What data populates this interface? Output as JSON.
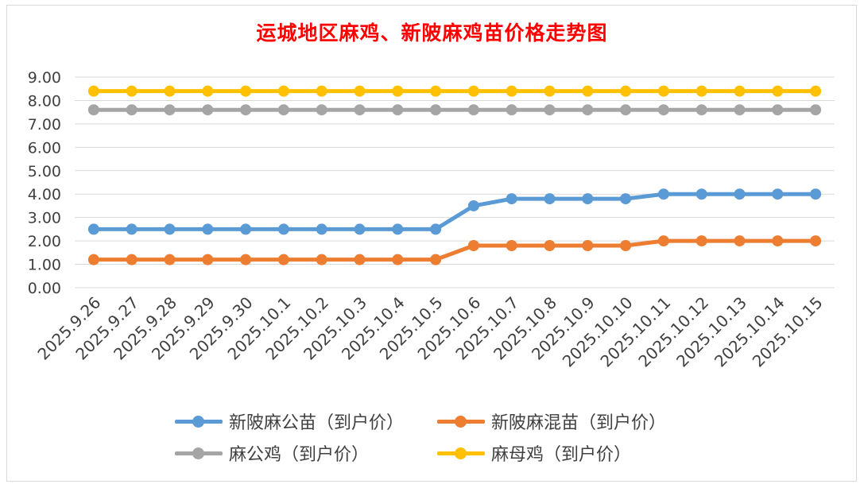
{
  "chart_data": {
    "type": "line",
    "title": "运城地区麻鸡、新陂麻鸡苗价格走势图",
    "categories": [
      "2025.9.26",
      "2025.9.27",
      "2025.9.28",
      "2025.9.29",
      "2025.9.30",
      "2025.10.1",
      "2025.10.2",
      "2025.10.3",
      "2025.10.4",
      "2025.10.5",
      "2025.10.6",
      "2025.10.7",
      "2025.10.8",
      "2025.10.9",
      "2025.10.10",
      "2025.10.11",
      "2025.10.12",
      "2025.10.13",
      "2025.10.14",
      "2025.10.15"
    ],
    "ylim": [
      0,
      9
    ],
    "yticks": [
      "0.00",
      "1.00",
      "2.00",
      "3.00",
      "4.00",
      "5.00",
      "6.00",
      "7.00",
      "8.00",
      "9.00"
    ],
    "grid": true,
    "legend_position": "bottom",
    "series": [
      {
        "name": "新陂麻公苗（到户价）",
        "color": "#5b9bd5",
        "values": [
          2.5,
          2.5,
          2.5,
          2.5,
          2.5,
          2.5,
          2.5,
          2.5,
          2.5,
          2.5,
          3.5,
          3.8,
          3.8,
          3.8,
          3.8,
          4.0,
          4.0,
          4.0,
          4.0,
          4.0
        ]
      },
      {
        "name": "新陂麻混苗（到户价）",
        "color": "#ed7d31",
        "values": [
          1.2,
          1.2,
          1.2,
          1.2,
          1.2,
          1.2,
          1.2,
          1.2,
          1.2,
          1.2,
          1.8,
          1.8,
          1.8,
          1.8,
          1.8,
          2.0,
          2.0,
          2.0,
          2.0,
          2.0
        ]
      },
      {
        "name": "麻公鸡（到户价）",
        "color": "#a5a5a5",
        "values": [
          7.6,
          7.6,
          7.6,
          7.6,
          7.6,
          7.6,
          7.6,
          7.6,
          7.6,
          7.6,
          7.6,
          7.6,
          7.6,
          7.6,
          7.6,
          7.6,
          7.6,
          7.6,
          7.6,
          7.6
        ]
      },
      {
        "name": "麻母鸡（到户价）",
        "color": "#ffc000",
        "values": [
          8.4,
          8.4,
          8.4,
          8.4,
          8.4,
          8.4,
          8.4,
          8.4,
          8.4,
          8.4,
          8.4,
          8.4,
          8.4,
          8.4,
          8.4,
          8.4,
          8.4,
          8.4,
          8.4,
          8.4
        ]
      }
    ]
  }
}
